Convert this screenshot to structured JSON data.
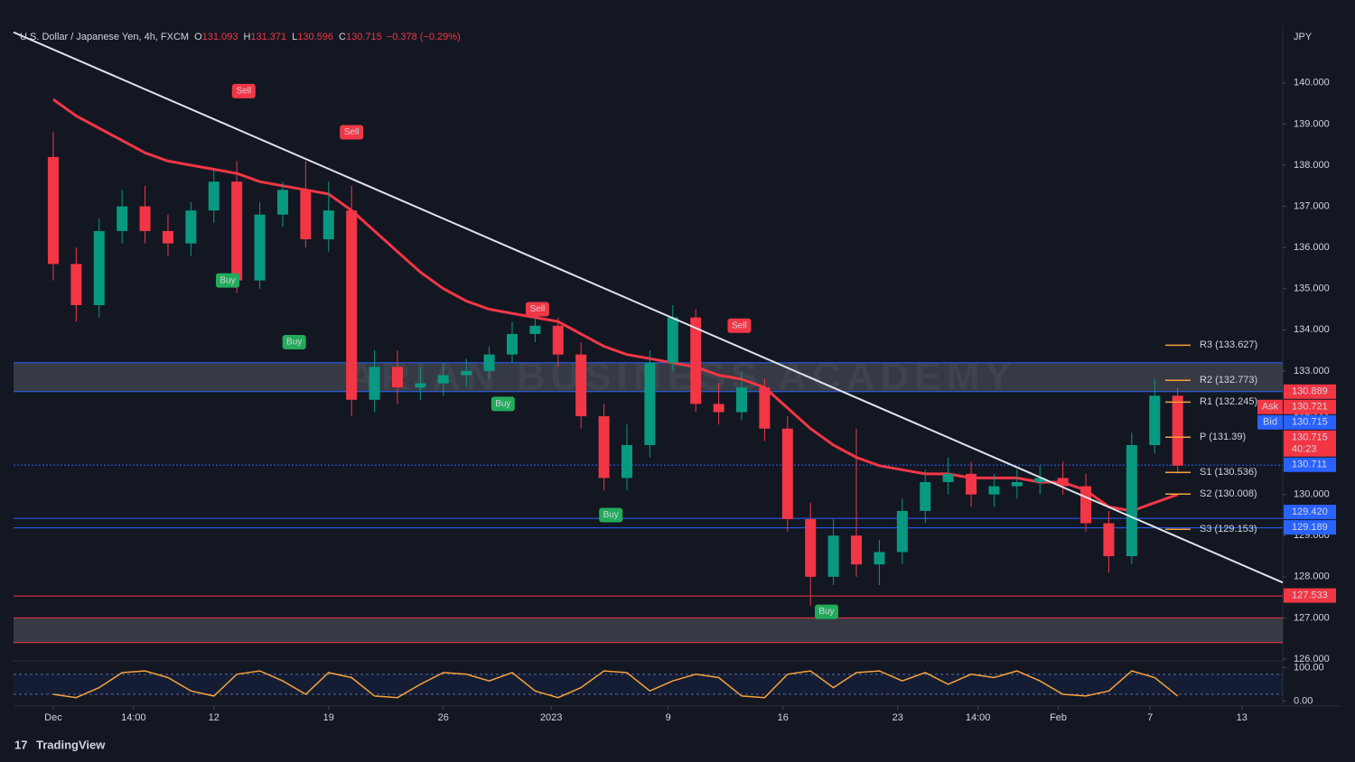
{
  "chart_data": {
    "type": "candlestick",
    "title": "U.S. Dollar / Japanese Yen, 4h, FXCM",
    "ohlc_header": [
      {
        "key": "O",
        "value": 131.093
      },
      {
        "key": "H",
        "value": 131.371
      },
      {
        "key": "L",
        "value": 130.596
      },
      {
        "key": "C",
        "value": 130.715
      }
    ],
    "change_label": "−0.378 (−0.29%)",
    "currency": "JPY",
    "brand": "TradingView",
    "watermark": "ARIAN BUSINESS ACADEMY",
    "up_color": "#089981",
    "down_color": "#f23645",
    "x": [
      0,
      1,
      2,
      3,
      4,
      5,
      6,
      7,
      8,
      9,
      10,
      11,
      12,
      13,
      14,
      15,
      16,
      17,
      18,
      19,
      20,
      21,
      22,
      23,
      24,
      25,
      26,
      27,
      28,
      29,
      30,
      31,
      32,
      33,
      34,
      35,
      36,
      37,
      38,
      39,
      40,
      41,
      42,
      43,
      44,
      45,
      46,
      47,
      48,
      49
    ],
    "open": [
      138.2,
      135.6,
      134.6,
      136.4,
      137.0,
      136.4,
      136.1,
      136.9,
      137.6,
      135.2,
      136.8,
      137.4,
      136.2,
      136.9,
      132.3,
      133.1,
      132.6,
      132.7,
      132.9,
      133.0,
      133.4,
      133.9,
      134.1,
      133.4,
      131.9,
      130.4,
      131.2,
      133.2,
      134.3,
      132.2,
      132.0,
      132.6,
      131.6,
      129.4,
      128.0,
      129.0,
      128.3,
      128.6,
      129.6,
      130.3,
      130.5,
      130.0,
      130.2,
      130.3,
      130.4,
      130.2,
      129.3,
      128.5,
      131.2,
      132.4
    ],
    "high": [
      138.8,
      136.0,
      136.7,
      137.4,
      137.5,
      136.8,
      137.1,
      137.9,
      138.1,
      137.1,
      137.6,
      138.1,
      137.6,
      137.5,
      133.5,
      133.5,
      133.1,
      133.2,
      133.3,
      133.6,
      134.2,
      134.4,
      134.3,
      133.7,
      132.2,
      131.7,
      133.5,
      134.6,
      134.5,
      132.7,
      133.0,
      132.8,
      131.9,
      129.8,
      129.4,
      131.6,
      128.9,
      129.9,
      130.6,
      130.9,
      130.8,
      130.5,
      130.6,
      130.7,
      130.8,
      130.5,
      129.6,
      131.5,
      132.8,
      132.6
    ],
    "low": [
      135.2,
      134.2,
      134.3,
      136.1,
      136.1,
      135.8,
      135.8,
      136.6,
      134.9,
      135.0,
      136.5,
      136.0,
      135.9,
      131.9,
      132.0,
      132.2,
      132.3,
      132.4,
      132.6,
      132.8,
      133.2,
      133.7,
      133.1,
      131.6,
      130.1,
      130.1,
      130.9,
      133.0,
      132.0,
      131.7,
      131.8,
      131.3,
      129.1,
      127.3,
      127.8,
      128.0,
      127.8,
      128.3,
      129.3,
      130.0,
      129.7,
      129.7,
      129.9,
      130.0,
      130.0,
      129.1,
      128.1,
      128.3,
      131.0,
      130.5
    ],
    "close": [
      135.6,
      134.6,
      136.4,
      137.0,
      136.4,
      136.1,
      136.9,
      137.6,
      135.2,
      136.8,
      137.4,
      136.2,
      136.9,
      132.3,
      133.1,
      132.6,
      132.7,
      132.9,
      133.0,
      133.4,
      133.9,
      134.1,
      133.4,
      131.9,
      130.4,
      131.2,
      133.2,
      134.3,
      132.2,
      132.0,
      132.6,
      131.6,
      129.4,
      128.0,
      129.0,
      128.3,
      128.6,
      129.6,
      130.3,
      130.5,
      130.0,
      130.2,
      130.3,
      130.4,
      130.2,
      129.3,
      128.5,
      131.2,
      132.4,
      130.7
    ],
    "ema": {
      "color": "#f23645",
      "values": [
        139.6,
        139.2,
        138.9,
        138.6,
        138.3,
        138.1,
        138.0,
        137.9,
        137.8,
        137.6,
        137.5,
        137.4,
        137.3,
        136.9,
        136.4,
        135.9,
        135.4,
        135.0,
        134.7,
        134.5,
        134.4,
        134.3,
        134.2,
        133.9,
        133.6,
        133.4,
        133.3,
        133.2,
        133.1,
        132.9,
        132.8,
        132.6,
        132.1,
        131.6,
        131.2,
        130.9,
        130.7,
        130.6,
        130.5,
        130.5,
        130.4,
        130.4,
        130.4,
        130.3,
        130.3,
        130.1,
        129.7,
        129.6,
        129.8,
        130.0
      ]
    },
    "xlim": [
      -1.73,
      53.58
    ],
    "ylim": [
      126.0,
      141.4
    ],
    "xticks": [
      {
        "value": 0,
        "label": "Dec"
      },
      {
        "value": 3.5,
        "label": "14:00"
      },
      {
        "value": 7,
        "label": "12"
      },
      {
        "value": 12,
        "label": "19"
      },
      {
        "value": 17,
        "label": "26"
      },
      {
        "value": 21.7,
        "label": "2023"
      },
      {
        "value": 26.8,
        "label": "9"
      },
      {
        "value": 31.8,
        "label": "16"
      },
      {
        "value": 36.8,
        "label": "23"
      },
      {
        "value": 40.3,
        "label": "14:00"
      },
      {
        "value": 43.8,
        "label": "Feb"
      },
      {
        "value": 47.8,
        "label": "7"
      },
      {
        "value": 51.8,
        "label": "13"
      }
    ],
    "yticks": [
      {
        "value": 126,
        "label": "126.000"
      },
      {
        "value": 127,
        "label": "127.000"
      },
      {
        "value": 128,
        "label": "128.000"
      },
      {
        "value": 129,
        "label": "129.000"
      },
      {
        "value": 130,
        "label": "130.000"
      },
      {
        "value": 131,
        "label": "131.000"
      },
      {
        "value": 132,
        "label": "132.000"
      },
      {
        "value": 133,
        "label": "133.000"
      },
      {
        "value": 134,
        "label": "134.000"
      },
      {
        "value": 135,
        "label": "135.000"
      },
      {
        "value": 136,
        "label": "136.000"
      },
      {
        "value": 137,
        "label": "137.000"
      },
      {
        "value": 138,
        "label": "138.000"
      },
      {
        "value": 139,
        "label": "139.000"
      },
      {
        "value": 140,
        "label": "140.000"
      }
    ],
    "trendline": {
      "x": [
        -1.73,
        53.58
      ],
      "y": [
        141.23,
        127.86
      ],
      "color": "#e0e3eb"
    },
    "zones": [
      {
        "from": 132.5,
        "to": 133.2,
        "border": "#2962ff"
      },
      {
        "from": 126.4,
        "to": 127.0,
        "border": "#f23645"
      }
    ],
    "pivots": [
      {
        "label": "R3 (133.627)",
        "value": 133.627
      },
      {
        "label": "R2 (132.773)",
        "value": 132.773
      },
      {
        "label": "R1 (132.245)",
        "value": 132.245
      },
      {
        "label": "P (131.39)",
        "value": 131.39
      },
      {
        "label": "S1 (130.536)",
        "value": 130.536
      },
      {
        "label": "S2 (130.008)",
        "value": 130.008
      },
      {
        "label": "S3 (129.153)",
        "value": 129.153
      }
    ],
    "pivot_color": "#f7a23b",
    "price_tags": [
      {
        "value": 130.889,
        "label": "130.889",
        "color": "#f23645"
      },
      {
        "value": 130.721,
        "label": "130.721",
        "tag": "Ask",
        "color": "#f23645"
      },
      {
        "value": 130.715,
        "label": "130.715",
        "tag": "Bid",
        "color": "#2962ff",
        "line": "dotted"
      },
      {
        "value": 130.715,
        "label": "130.715",
        "countdown": "40:23",
        "color": "#f23645"
      },
      {
        "value": 130.711,
        "label": "130.711",
        "color": "#2962ff"
      },
      {
        "value": 129.42,
        "label": "129.420",
        "color": "#2962ff",
        "line": "solid"
      },
      {
        "value": 129.189,
        "label": "129.189",
        "color": "#2962ff",
        "line": "solid"
      },
      {
        "value": 127.533,
        "label": "127.533",
        "color": "#f23645",
        "line": "solid"
      }
    ],
    "signals": [
      {
        "label": "Sell",
        "x": 8.3,
        "y": 139.8
      },
      {
        "label": "Sell",
        "x": 13.0,
        "y": 138.8
      },
      {
        "label": "Sell",
        "x": 21.1,
        "y": 134.5
      },
      {
        "label": "Sell",
        "x": 29.9,
        "y": 134.1
      },
      {
        "label": "Buy",
        "x": 7.6,
        "y": 135.2
      },
      {
        "label": "Buy",
        "x": 10.5,
        "y": 133.7
      },
      {
        "label": "Buy",
        "x": 19.6,
        "y": 132.2
      },
      {
        "label": "Buy",
        "x": 24.3,
        "y": 129.5
      },
      {
        "label": "Buy",
        "x": 33.7,
        "y": 127.15
      }
    ],
    "oscillator": {
      "color": "#f7a23b",
      "values": [
        20,
        10,
        40,
        85,
        90,
        70,
        30,
        15,
        80,
        90,
        60,
        20,
        85,
        70,
        15,
        10,
        50,
        85,
        80,
        60,
        85,
        30,
        10,
        40,
        90,
        85,
        30,
        60,
        80,
        70,
        15,
        10,
        80,
        90,
        40,
        85,
        90,
        60,
        85,
        50,
        80,
        70,
        90,
        60,
        20,
        15,
        30,
        90,
        70,
        15
      ],
      "ylim": [
        -15,
        120
      ],
      "yticks": [
        {
          "value": 0,
          "label": "0.00"
        },
        {
          "value": 100,
          "label": "100.00"
        }
      ],
      "levels": [
        20,
        80
      ]
    }
  }
}
